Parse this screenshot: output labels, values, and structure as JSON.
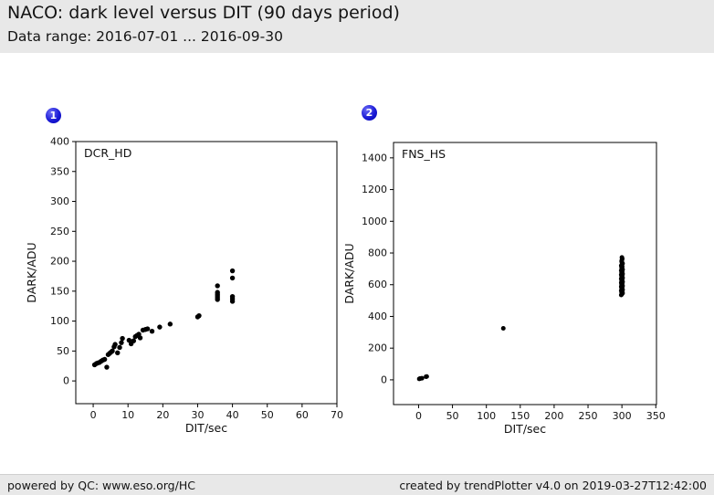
{
  "header": {
    "title": "NACO: dark level versus DIT (90 days period)",
    "subtitle": "Data range: 2016-07-01 ... 2016-09-30"
  },
  "badges": [
    {
      "label": "1"
    },
    {
      "label": "2"
    }
  ],
  "footer": {
    "left": "powered by QC: www.eso.org/HC",
    "right": "created by trendPlotter v4.0 on 2019-03-27T12:42:00"
  },
  "colors": {
    "badge_blue": "#1b1bd6",
    "panel_gray": "#e8e8e8",
    "marker_black": "#000000"
  },
  "chart_data": [
    {
      "type": "scatter",
      "label": "DCR_HD",
      "xlabel": "DIT/sec",
      "ylabel": "DARK/ADU",
      "xlim": [
        -5,
        70
      ],
      "ylim": [
        -38,
        400
      ],
      "xticks": [
        0,
        10,
        20,
        30,
        40,
        50,
        60,
        70
      ],
      "yticks": [
        0,
        50,
        100,
        150,
        200,
        250,
        300,
        350,
        400
      ],
      "grid": false,
      "points": [
        [
          0.4,
          27
        ],
        [
          0.9,
          29
        ],
        [
          1.3,
          30
        ],
        [
          1.8,
          31
        ],
        [
          2.3,
          33
        ],
        [
          2.8,
          35
        ],
        [
          3.3,
          36
        ],
        [
          3.9,
          23
        ],
        [
          4.3,
          44
        ],
        [
          4.7,
          46
        ],
        [
          5.1,
          48
        ],
        [
          5.5,
          50
        ],
        [
          6.0,
          57
        ],
        [
          6.3,
          61
        ],
        [
          7.0,
          47
        ],
        [
          7.6,
          56
        ],
        [
          8.1,
          64
        ],
        [
          8.4,
          71
        ],
        [
          10.3,
          68
        ],
        [
          10.9,
          62
        ],
        [
          11.6,
          67
        ],
        [
          12.1,
          74
        ],
        [
          12.6,
          76
        ],
        [
          13.1,
          78
        ],
        [
          13.5,
          72
        ],
        [
          14.3,
          85
        ],
        [
          15.0,
          86
        ],
        [
          15.6,
          87
        ],
        [
          16.9,
          83
        ],
        [
          19.1,
          90
        ],
        [
          22.1,
          95
        ],
        [
          30.0,
          107
        ],
        [
          30.4,
          109
        ],
        [
          35.7,
          136
        ],
        [
          35.7,
          139
        ],
        [
          35.7,
          142
        ],
        [
          35.7,
          145
        ],
        [
          35.7,
          148
        ],
        [
          35.7,
          159
        ],
        [
          40,
          133
        ],
        [
          40,
          137
        ],
        [
          40,
          141
        ],
        [
          40,
          172
        ],
        [
          40,
          184
        ]
      ]
    },
    {
      "type": "scatter",
      "label": "FNS_HS",
      "xlabel": "DIT/sec",
      "ylabel": "DARK/ADU",
      "xlim": [
        -37,
        351
      ],
      "ylim": [
        -156,
        1497
      ],
      "xticks": [
        0,
        50,
        100,
        150,
        200,
        250,
        300,
        350
      ],
      "yticks": [
        0,
        200,
        400,
        600,
        800,
        1000,
        1200,
        1400
      ],
      "grid": false,
      "points": [
        [
          1,
          6
        ],
        [
          2,
          8
        ],
        [
          3,
          9
        ],
        [
          5,
          10
        ],
        [
          11,
          20
        ],
        [
          12,
          21
        ],
        [
          125,
          325
        ],
        [
          299,
          535
        ],
        [
          300,
          541
        ],
        [
          301,
          547
        ],
        [
          299.5,
          553
        ],
        [
          300.5,
          558
        ],
        [
          299,
          563
        ],
        [
          301,
          568
        ],
        [
          300,
          573
        ],
        [
          299.5,
          578
        ],
        [
          300.5,
          583
        ],
        [
          299,
          588
        ],
        [
          301,
          593
        ],
        [
          300,
          598
        ],
        [
          299.5,
          603
        ],
        [
          300.5,
          608
        ],
        [
          299,
          613
        ],
        [
          301,
          618
        ],
        [
          300,
          623
        ],
        [
          299.5,
          628
        ],
        [
          300.5,
          633
        ],
        [
          299,
          638
        ],
        [
          301,
          643
        ],
        [
          300,
          648
        ],
        [
          299.5,
          653
        ],
        [
          300.5,
          658
        ],
        [
          299,
          663
        ],
        [
          301,
          668
        ],
        [
          300,
          673
        ],
        [
          299.5,
          678
        ],
        [
          300.5,
          684
        ],
        [
          299,
          690
        ],
        [
          301,
          696
        ],
        [
          300,
          702
        ],
        [
          299.5,
          708
        ],
        [
          300.5,
          714
        ],
        [
          299,
          720
        ],
        [
          300,
          727
        ],
        [
          301,
          734
        ],
        [
          300,
          741
        ],
        [
          299.5,
          748
        ],
        [
          300,
          756
        ],
        [
          300.5,
          764
        ],
        [
          300,
          772
        ]
      ]
    }
  ]
}
